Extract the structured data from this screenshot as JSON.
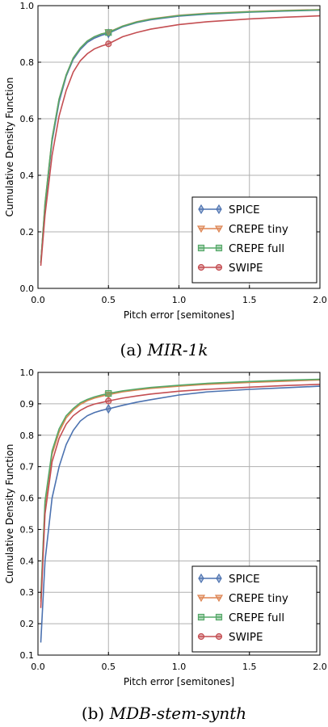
{
  "chart_data": [
    {
      "type": "line",
      "caption_prefix": "(a) ",
      "caption_name": "MIR-1k",
      "xlabel": "Pitch error [semitones]",
      "ylabel": "Cumulative Density Function",
      "xlim": [
        0,
        2.0
      ],
      "ylim": [
        0,
        1.0
      ],
      "xticks": [
        "0.0",
        "0.5",
        "1.0",
        "1.5",
        "2.0"
      ],
      "yticks": [
        "0.0",
        "0.2",
        "0.4",
        "0.6",
        "0.8",
        "1.0"
      ],
      "grid": true,
      "legend_position": "lower-right",
      "x": [
        0.02,
        0.05,
        0.1,
        0.15,
        0.2,
        0.25,
        0.3,
        0.35,
        0.4,
        0.45,
        0.5,
        0.6,
        0.7,
        0.8,
        1.0,
        1.2,
        1.5,
        1.75,
        2.0
      ],
      "series": [
        {
          "name": "SPICE",
          "color": "#4c72b0",
          "marker": "diamond",
          "marker_x": 0.5,
          "values": [
            0.09,
            0.29,
            0.52,
            0.66,
            0.75,
            0.81,
            0.845,
            0.87,
            0.885,
            0.895,
            0.902,
            0.925,
            0.94,
            0.95,
            0.963,
            0.97,
            0.977,
            0.981,
            0.984
          ]
        },
        {
          "name": "CREPE tiny",
          "color": "#dd8452",
          "marker": "triangle-down",
          "marker_x": 0.5,
          "values": [
            0.09,
            0.3,
            0.53,
            0.67,
            0.755,
            0.815,
            0.85,
            0.875,
            0.89,
            0.9,
            0.906,
            0.928,
            0.943,
            0.953,
            0.966,
            0.973,
            0.979,
            0.983,
            0.986
          ]
        },
        {
          "name": "CREPE full",
          "color": "#55a868",
          "marker": "square",
          "marker_x": 0.5,
          "values": [
            0.09,
            0.3,
            0.53,
            0.67,
            0.755,
            0.815,
            0.85,
            0.875,
            0.89,
            0.9,
            0.905,
            0.927,
            0.942,
            0.952,
            0.965,
            0.972,
            0.978,
            0.982,
            0.985
          ]
        },
        {
          "name": "SWIPE",
          "color": "#c44e52",
          "marker": "circle",
          "marker_x": 0.5,
          "values": [
            0.08,
            0.26,
            0.47,
            0.61,
            0.7,
            0.765,
            0.805,
            0.83,
            0.847,
            0.857,
            0.865,
            0.89,
            0.905,
            0.917,
            0.933,
            0.943,
            0.953,
            0.959,
            0.964
          ]
        }
      ]
    },
    {
      "type": "line",
      "caption_prefix": "(b) ",
      "caption_name": "MDB-stem-synth",
      "xlabel": "Pitch error [semitones]",
      "ylabel": "Cumulative Density Function",
      "xlim": [
        0,
        2.0
      ],
      "ylim": [
        0.1,
        1.0
      ],
      "xticks": [
        "0.0",
        "0.5",
        "1.0",
        "1.5",
        "2.0"
      ],
      "yticks": [
        "0.1",
        "0.2",
        "0.3",
        "0.4",
        "0.5",
        "0.6",
        "0.7",
        "0.8",
        "0.9",
        "1.0"
      ],
      "grid": true,
      "legend_position": "lower-right",
      "x": [
        0.02,
        0.05,
        0.1,
        0.15,
        0.2,
        0.25,
        0.3,
        0.35,
        0.4,
        0.45,
        0.5,
        0.6,
        0.7,
        0.8,
        1.0,
        1.2,
        1.5,
        1.75,
        2.0
      ],
      "series": [
        {
          "name": "SPICE",
          "color": "#4c72b0",
          "marker": "diamond",
          "marker_x": 0.5,
          "values": [
            0.14,
            0.4,
            0.6,
            0.7,
            0.77,
            0.815,
            0.845,
            0.862,
            0.872,
            0.879,
            0.884,
            0.895,
            0.905,
            0.913,
            0.928,
            0.938,
            0.946,
            0.951,
            0.956
          ]
        },
        {
          "name": "CREPE tiny",
          "color": "#dd8452",
          "marker": "triangle-down",
          "marker_x": 0.5,
          "values": [
            0.27,
            0.58,
            0.74,
            0.81,
            0.855,
            0.88,
            0.898,
            0.91,
            0.918,
            0.924,
            0.929,
            0.938,
            0.944,
            0.949,
            0.956,
            0.962,
            0.968,
            0.972,
            0.976
          ]
        },
        {
          "name": "CREPE full",
          "color": "#55a868",
          "marker": "square",
          "marker_x": 0.5,
          "values": [
            0.28,
            0.59,
            0.75,
            0.82,
            0.862,
            0.885,
            0.903,
            0.914,
            0.922,
            0.928,
            0.933,
            0.941,
            0.947,
            0.952,
            0.959,
            0.965,
            0.971,
            0.975,
            0.978
          ]
        },
        {
          "name": "SWIPE",
          "color": "#c44e52",
          "marker": "circle",
          "marker_x": 0.5,
          "values": [
            0.25,
            0.55,
            0.715,
            0.79,
            0.835,
            0.862,
            0.879,
            0.891,
            0.899,
            0.904,
            0.909,
            0.918,
            0.925,
            0.931,
            0.94,
            0.946,
            0.953,
            0.958,
            0.962
          ]
        }
      ]
    }
  ]
}
